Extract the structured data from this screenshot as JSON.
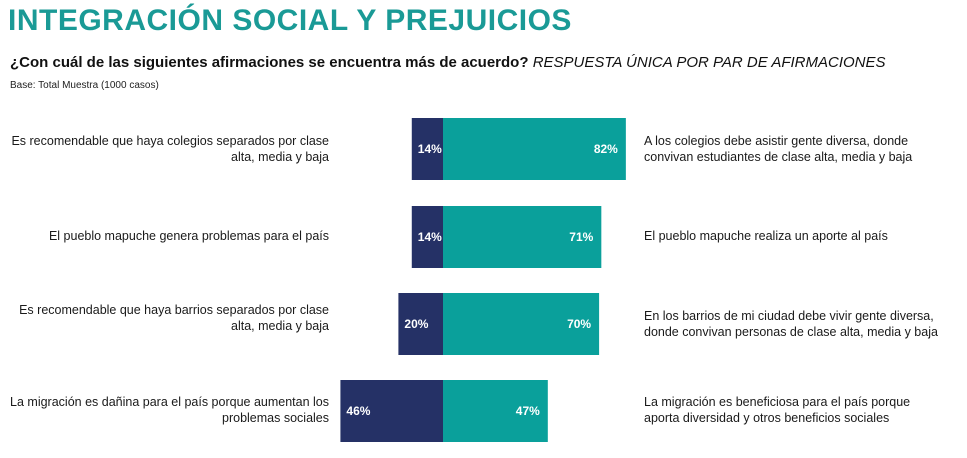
{
  "header": {
    "title": "INTEGRACIÓN SOCIAL Y PREJUICIOS",
    "question": "¿Con cuál de las siguientes afirmaciones se encuentra más de acuerdo?",
    "question_note": "RESPUESTA ÚNICA POR PAR DE AFIRMACIONES",
    "base": "Base: Total Muestra (1000 casos)"
  },
  "colors": {
    "title": "#1a9a96",
    "left_series": "#253166",
    "right_series": "#0aa09b"
  },
  "chart_data": {
    "type": "bar",
    "orientation": "horizontal-diverging",
    "pairs": [
      {
        "left_statement": "Es recomendable que haya colegios separados por clase alta, media y baja",
        "right_statement": "A los colegios debe asistir gente diversa, donde convivan estudiantes de clase alta, media y baja",
        "left_value": 14,
        "right_value": 82,
        "left_label": "14%",
        "right_label": "82%"
      },
      {
        "left_statement": "El pueblo mapuche genera problemas para el país",
        "right_statement": "El pueblo mapuche realiza un aporte al país",
        "left_value": 14,
        "right_value": 71,
        "left_label": "14%",
        "right_label": "71%"
      },
      {
        "left_statement": "Es recomendable que haya barrios separados por clase alta, media y baja",
        "right_statement": "En los barrios de mi ciudad debe vivir gente diversa, donde convivan personas de clase alta, media y baja",
        "left_value": 20,
        "right_value": 70,
        "left_label": "20%",
        "right_label": "70%"
      },
      {
        "left_statement": "La migración es dañina para el país porque aumentan los problemas sociales",
        "right_statement": "La migración es beneficiosa para el país porque aporta diversidad y otros beneficios sociales",
        "left_value": 46,
        "right_value": 47,
        "left_label": "46%",
        "right_label": "47%"
      }
    ]
  }
}
